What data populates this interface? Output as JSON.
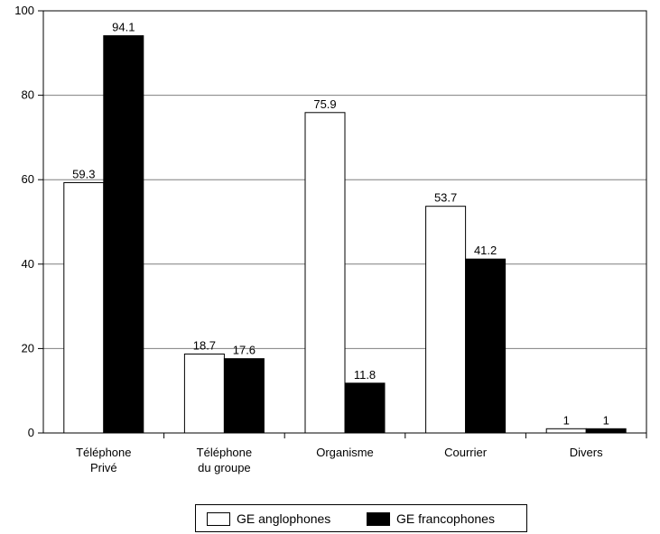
{
  "chart_data": {
    "type": "bar",
    "categories": [
      "Téléphone\nPrivé",
      "Téléphone\ndu groupe",
      "Organisme",
      "Courrier",
      "Divers"
    ],
    "series": [
      {
        "name": "GE anglophones",
        "values": [
          59.3,
          18.7,
          75.9,
          53.7,
          1
        ],
        "labels": [
          "59.3",
          "18.7",
          "75.9",
          "53.7",
          "1"
        ],
        "color": "#ffffff"
      },
      {
        "name": "GE francophones",
        "values": [
          94.1,
          17.6,
          11.8,
          41.2,
          1
        ],
        "labels": [
          "94.1",
          "17.6",
          "11.8",
          "41.2",
          "1"
        ],
        "color": "#000000"
      }
    ],
    "ylim": [
      0,
      100
    ],
    "yticks": [
      0,
      20,
      40,
      60,
      80,
      100
    ],
    "grid": true,
    "legend_position": "bottom"
  }
}
